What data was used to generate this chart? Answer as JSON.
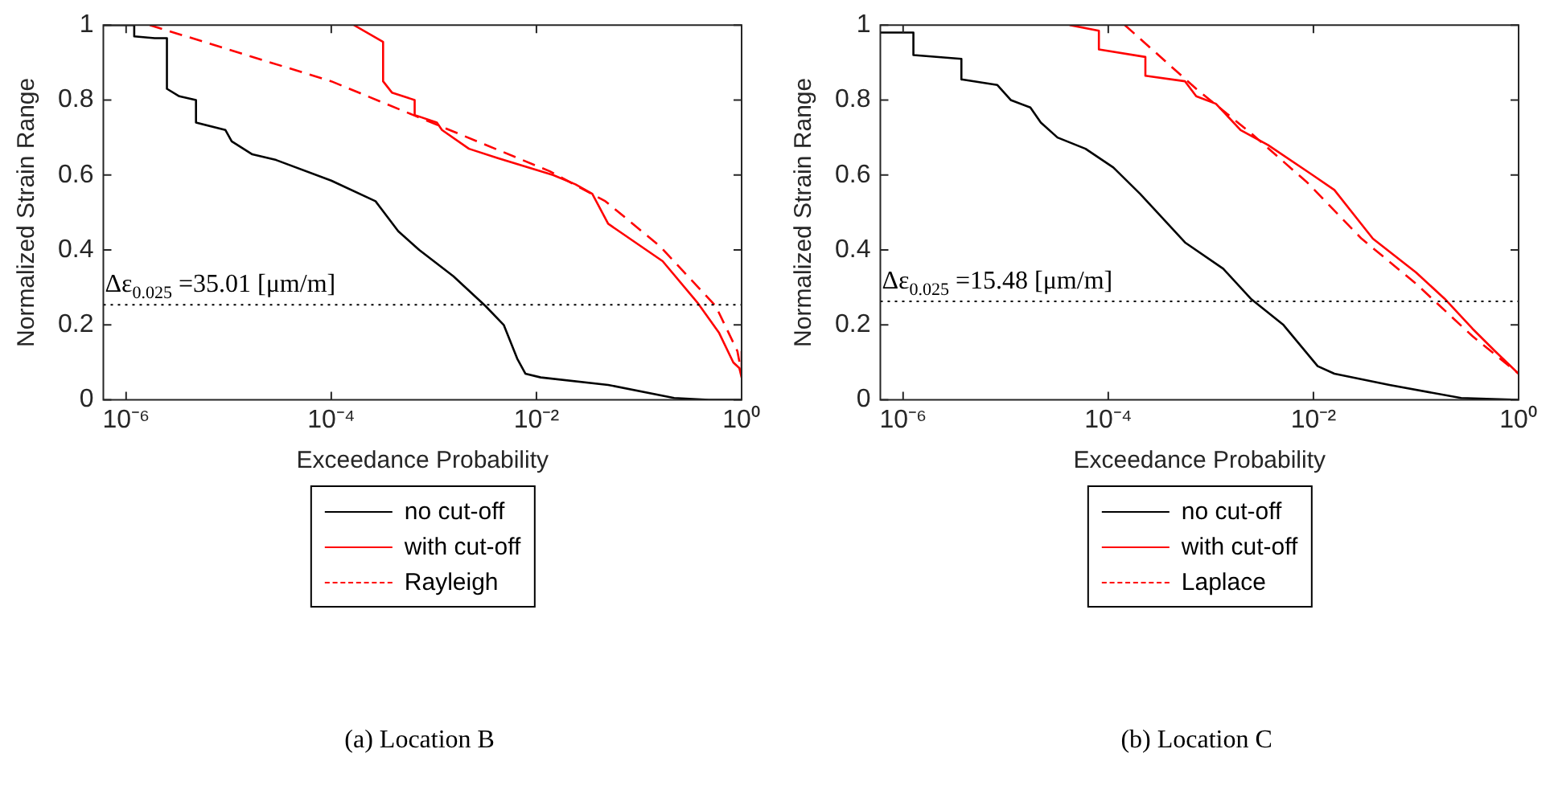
{
  "chart_data": [
    {
      "type": "line",
      "title": "(a) Location B",
      "xlabel": "Exceedance Probability",
      "ylabel": "Normalized Strain Range",
      "log": "x",
      "grid": false,
      "legend": "bottom",
      "marker": "none",
      "xlim": [
        6e-07,
        1
      ],
      "xticks": [
        {
          "value": 1e-06,
          "label": "10⁻⁶"
        },
        {
          "value": 0.0001,
          "label": "10⁻⁴"
        },
        {
          "value": 0.01,
          "label": "10⁻²"
        },
        {
          "value": 1,
          "label": "10⁰"
        }
      ],
      "ylim": [
        0,
        1
      ],
      "yticks": [
        0,
        0.2,
        0.4,
        0.6,
        0.8,
        1
      ],
      "ref_lines": [
        {
          "axis": "y",
          "value": 0.254,
          "color": "#000000",
          "line_style": "dotted"
        }
      ],
      "annotations": [
        "Δε$_{0.025}$ =35.01 [μm/m]"
      ],
      "series": [
        {
          "name": "no cut-off",
          "color": "#000000",
          "line_style": "solid",
          "x": [
            6e-07,
            1.2e-06,
            1.2e-06,
            1.9e-06,
            2.5e-06,
            2.5e-06,
            3.3e-06,
            4.8e-06,
            4.8e-06,
            9.3e-06,
            1.07e-05,
            1.7e-05,
            2.9e-05,
            0.0001,
            0.00027,
            0.00045,
            0.00072,
            0.00155,
            0.0032,
            0.0048,
            0.0065,
            0.0078,
            0.011,
            0.05,
            0.22,
            0.48,
            1
          ],
          "values": [
            1,
            1,
            0.97,
            0.965,
            0.965,
            0.83,
            0.81,
            0.8,
            0.74,
            0.72,
            0.69,
            0.655,
            0.64,
            0.585,
            0.53,
            0.45,
            0.4,
            0.33,
            0.25,
            0.2,
            0.11,
            0.07,
            0.06,
            0.04,
            0.005,
            0,
            0
          ]
        },
        {
          "name": "with cut-off",
          "color": "#ff0000",
          "line_style": "solid",
          "x": [
            0.000166,
            0.00032,
            0.00032,
            0.00039,
            0.00065,
            0.00065,
            0.00107,
            0.0012,
            0.0022,
            0.0042,
            0.0145,
            0.024,
            0.035,
            0.05,
            0.17,
            0.37,
            0.6,
            0.83,
            0.95,
            1,
            1
          ],
          "values": [
            1,
            0.955,
            0.85,
            0.82,
            0.8,
            0.76,
            0.74,
            0.72,
            0.67,
            0.645,
            0.6,
            0.575,
            0.55,
            0.47,
            0.37,
            0.26,
            0.18,
            0.1,
            0.085,
            0.06,
            0.13
          ]
        },
        {
          "name": "Rayleigh",
          "color": "#ff0000",
          "line_style": "dashed",
          "x": [
            1.7e-06,
            0.0001,
            0.00063,
            0.0135,
            0.047,
            0.16,
            0.56,
            0.91,
            1
          ],
          "values": [
            1,
            0.85,
            0.76,
            0.61,
            0.53,
            0.41,
            0.25,
            0.13,
            0.07
          ]
        }
      ]
    },
    {
      "type": "line",
      "title": "(b) Location C",
      "xlabel": "Exceedance Probability",
      "ylabel": "Normalized Strain Range",
      "log": "x",
      "grid": false,
      "legend": "bottom",
      "marker": "none",
      "xlim": [
        6e-07,
        1
      ],
      "xticks": [
        {
          "value": 1e-06,
          "label": "10⁻⁶"
        },
        {
          "value": 0.0001,
          "label": "10⁻⁴"
        },
        {
          "value": 0.01,
          "label": "10⁻²"
        },
        {
          "value": 1,
          "label": "10⁰"
        }
      ],
      "ylim": [
        0,
        1
      ],
      "yticks": [
        0,
        0.2,
        0.4,
        0.6,
        0.8,
        1
      ],
      "ref_lines": [
        {
          "axis": "y",
          "value": 0.263,
          "color": "#000000",
          "line_style": "dotted"
        }
      ],
      "annotations": [
        "Δε$_{0.025}$ =15.48 [μm/m]"
      ],
      "series": [
        {
          "name": "no cut-off",
          "color": "#000000",
          "line_style": "solid",
          "x": [
            6e-07,
            1.26e-06,
            1.26e-06,
            3.7e-06,
            3.7e-06,
            8.3e-06,
            1.12e-05,
            1.74e-05,
            2.2e-05,
            3.2e-05,
            6e-05,
            0.000112,
            0.000204,
            0.00056,
            0.00132,
            0.00245,
            0.0051,
            0.011,
            0.016,
            0.055,
            0.275,
            1
          ],
          "values": [
            0.98,
            0.98,
            0.92,
            0.91,
            0.855,
            0.84,
            0.8,
            0.78,
            0.74,
            0.7,
            0.67,
            0.62,
            0.55,
            0.42,
            0.35,
            0.27,
            0.2,
            0.09,
            0.07,
            0.04,
            0.005,
            0
          ]
        },
        {
          "name": "with cut-off",
          "color": "#ff0000",
          "line_style": "solid",
          "x": [
            4.2e-05,
            8.1e-05,
            8.1e-05,
            0.00023,
            0.00023,
            0.00056,
            0.00072,
            0.00112,
            0.00195,
            0.0036,
            0.0098,
            0.016,
            0.038,
            0.1,
            0.19,
            0.355,
            0.59,
            1
          ],
          "values": [
            1,
            0.985,
            0.935,
            0.915,
            0.865,
            0.85,
            0.81,
            0.79,
            0.72,
            0.68,
            0.6,
            0.56,
            0.43,
            0.34,
            0.27,
            0.19,
            0.13,
            0.07
          ]
        },
        {
          "name": "Laplace",
          "color": "#ff0000",
          "line_style": "dashed",
          "x": [
            0.000145,
            0.00072,
            0.0025,
            0.0087,
            0.0295,
            0.1,
            0.355,
            1
          ],
          "values": [
            1,
            0.83,
            0.71,
            0.58,
            0.43,
            0.31,
            0.17,
            0.07
          ]
        }
      ]
    }
  ]
}
